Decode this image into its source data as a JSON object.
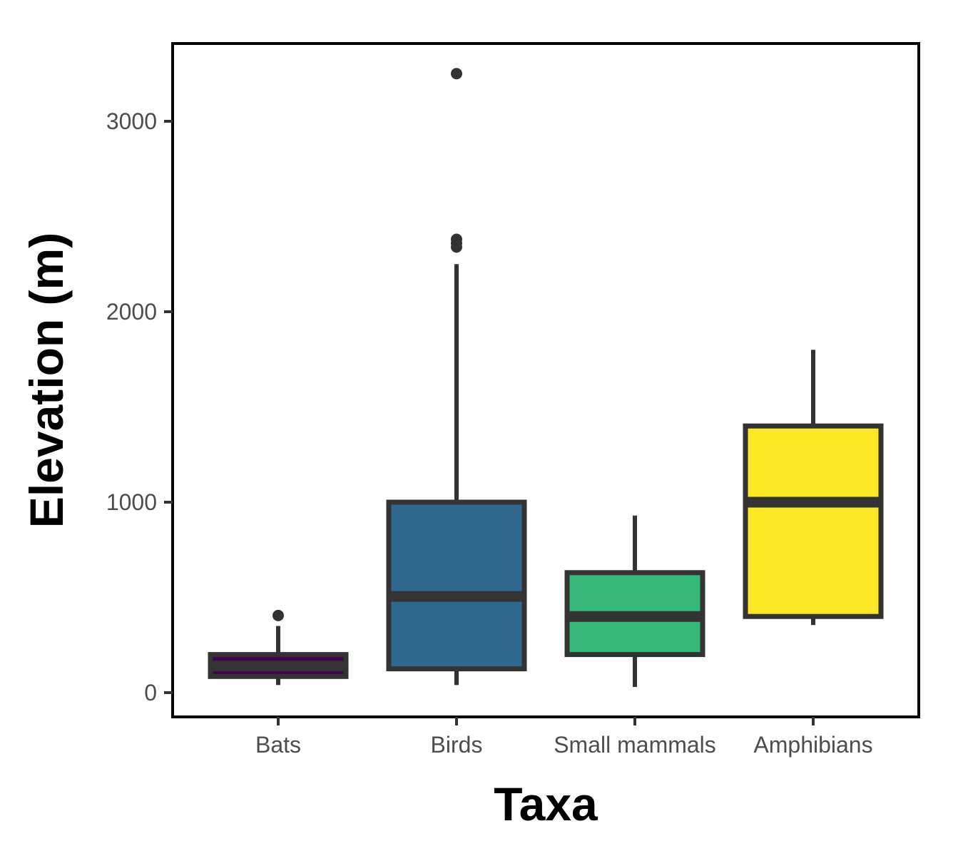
{
  "chart_data": {
    "type": "boxplot",
    "title": "",
    "xlabel": "Taxa",
    "ylabel": "Elevation (m)",
    "ylim": [
      -130,
      3410
    ],
    "yticks": [
      0,
      1000,
      2000,
      3000
    ],
    "yticklabels": [
      "0",
      "1000",
      "2000",
      "3000"
    ],
    "categories": [
      "Bats",
      "Birds",
      "Small mammals",
      "Amphibians"
    ],
    "grid": false,
    "legend": "none",
    "series": [
      {
        "category": "Bats",
        "whisker_low": 40,
        "q1": 85,
        "median": 140,
        "q3": 200,
        "whisker_high": 350,
        "outliers": [
          405
        ],
        "color": "#440154"
      },
      {
        "category": "Birds",
        "whisker_low": 40,
        "q1": 125,
        "median": 505,
        "q3": 1000,
        "whisker_high": 2250,
        "outliers": [
          2340,
          2360,
          2380,
          3250
        ],
        "color": "#31688E"
      },
      {
        "category": "Small mammals",
        "whisker_low": 30,
        "q1": 200,
        "median": 400,
        "q3": 630,
        "whisker_high": 930,
        "outliers": [],
        "color": "#35B779"
      },
      {
        "category": "Amphibians",
        "whisker_low": 355,
        "q1": 400,
        "median": 1000,
        "q3": 1400,
        "whisker_high": 1800,
        "outliers": [],
        "color": "#FDE725"
      }
    ],
    "colors": {
      "outline": "#333333",
      "panel_border": "#000000",
      "tick_text": "#4d4d4d"
    }
  }
}
